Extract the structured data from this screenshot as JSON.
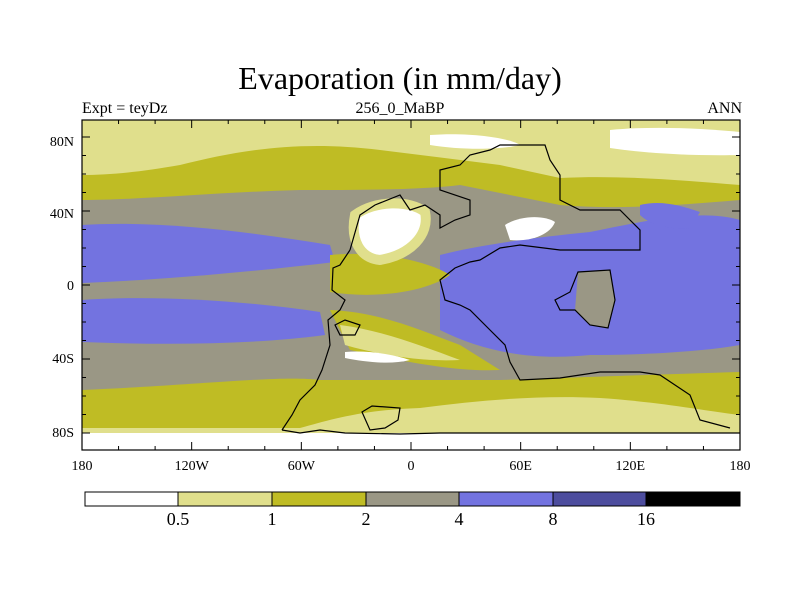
{
  "title": "Evaporation (in mm/day)",
  "left_label": "Expt = teyDz",
  "center_label": "256_0_MaBP",
  "right_label": "ANN",
  "y_ticks": [
    "80N",
    "40N",
    "0",
    "40S",
    "80S"
  ],
  "x_ticks": [
    "180",
    "120W",
    "60W",
    "0",
    "60E",
    "120E",
    "180"
  ],
  "colorbar": {
    "levels": [
      "0.5",
      "1",
      "2",
      "4",
      "8",
      "16"
    ],
    "colors": [
      "#ffffff",
      "#e0df8c",
      "#bfbc24",
      "#9a9785",
      "#7373e0",
      "#4d4d9e",
      "#000000"
    ]
  },
  "field_colors": {
    "lt05": "#ffffff",
    "b05_1": "#e0df8c",
    "b1_2": "#bfbc24",
    "b2_4": "#9a9785",
    "b4_8": "#7373e0",
    "coast": "#000000"
  }
}
